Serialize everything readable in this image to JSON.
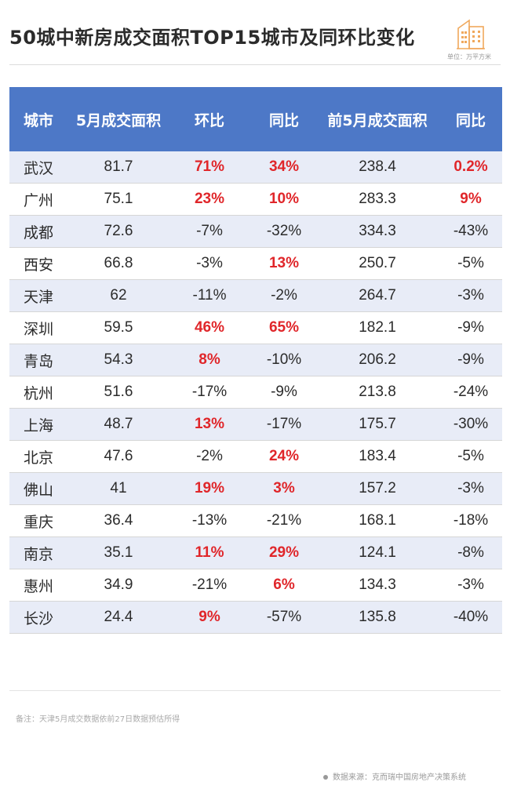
{
  "title": "50城中新房成交面积TOP15城市及同环比变化",
  "unit": "单位：万平方米",
  "table": {
    "headers": [
      "城市",
      "5月成交面积",
      "环比",
      "同比",
      "前5月成交面积",
      "同比"
    ],
    "rows": [
      [
        "武汉",
        "81.7",
        "71%",
        "34%",
        "238.4",
        "0.2%"
      ],
      [
        "广州",
        "75.1",
        "23%",
        "10%",
        "283.3",
        "9%"
      ],
      [
        "成都",
        "72.6",
        "-7%",
        "-32%",
        "334.3",
        "-43%"
      ],
      [
        "西安",
        "66.8",
        "-3%",
        "13%",
        "250.7",
        "-5%"
      ],
      [
        "天津",
        "62",
        "-11%",
        "-2%",
        "264.7",
        "-3%"
      ],
      [
        "深圳",
        "59.5",
        "46%",
        "65%",
        "182.1",
        "-9%"
      ],
      [
        "青岛",
        "54.3",
        "8%",
        "-10%",
        "206.2",
        "-9%"
      ],
      [
        "杭州",
        "51.6",
        "-17%",
        "-9%",
        "213.8",
        "-24%"
      ],
      [
        "上海",
        "48.7",
        "13%",
        "-17%",
        "175.7",
        "-30%"
      ],
      [
        "北京",
        "47.6",
        "-2%",
        "24%",
        "183.4",
        "-5%"
      ],
      [
        "佛山",
        "41",
        "19%",
        "3%",
        "157.2",
        "-3%"
      ],
      [
        "重庆",
        "36.4",
        "-13%",
        "-21%",
        "168.1",
        "-18%"
      ],
      [
        "南京",
        "35.1",
        "11%",
        "29%",
        "124.1",
        "-8%"
      ],
      [
        "惠州",
        "34.9",
        "-21%",
        "6%",
        "134.3",
        "-3%"
      ],
      [
        "长沙",
        "24.4",
        "9%",
        "-57%",
        "135.8",
        "-40%"
      ]
    ]
  },
  "chart_data": {
    "type": "table",
    "title": "50城中新房成交面积TOP15城市及同环比变化",
    "unit": "万平方米",
    "columns": [
      "城市",
      "5月成交面积",
      "环比",
      "同比",
      "前5月成交面积",
      "同比"
    ],
    "rows": [
      {
        "city": "武汉",
        "may_area": 81.7,
        "mom": 71,
        "yoy": 34,
        "ytd_area": 238.4,
        "ytd_yoy": 0.2
      },
      {
        "city": "广州",
        "may_area": 75.1,
        "mom": 23,
        "yoy": 10,
        "ytd_area": 283.3,
        "ytd_yoy": 9
      },
      {
        "city": "成都",
        "may_area": 72.6,
        "mom": -7,
        "yoy": -32,
        "ytd_area": 334.3,
        "ytd_yoy": -43
      },
      {
        "city": "西安",
        "may_area": 66.8,
        "mom": -3,
        "yoy": 13,
        "ytd_area": 250.7,
        "ytd_yoy": -5
      },
      {
        "city": "天津",
        "may_area": 62,
        "mom": -11,
        "yoy": -2,
        "ytd_area": 264.7,
        "ytd_yoy": -3
      },
      {
        "city": "深圳",
        "may_area": 59.5,
        "mom": 46,
        "yoy": 65,
        "ytd_area": 182.1,
        "ytd_yoy": -9
      },
      {
        "city": "青岛",
        "may_area": 54.3,
        "mom": 8,
        "yoy": -10,
        "ytd_area": 206.2,
        "ytd_yoy": -9
      },
      {
        "city": "杭州",
        "may_area": 51.6,
        "mom": -17,
        "yoy": -9,
        "ytd_area": 213.8,
        "ytd_yoy": -24
      },
      {
        "city": "上海",
        "may_area": 48.7,
        "mom": 13,
        "yoy": -17,
        "ytd_area": 175.7,
        "ytd_yoy": -30
      },
      {
        "city": "北京",
        "may_area": 47.6,
        "mom": -2,
        "yoy": 24,
        "ytd_area": 183.4,
        "ytd_yoy": -5
      },
      {
        "city": "佛山",
        "may_area": 41,
        "mom": 19,
        "yoy": 3,
        "ytd_area": 157.2,
        "ytd_yoy": -3
      },
      {
        "city": "重庆",
        "may_area": 36.4,
        "mom": -13,
        "yoy": -21,
        "ytd_area": 168.1,
        "ytd_yoy": -18
      },
      {
        "city": "南京",
        "may_area": 35.1,
        "mom": 11,
        "yoy": 29,
        "ytd_area": 124.1,
        "ytd_yoy": -8
      },
      {
        "city": "惠州",
        "may_area": 34.9,
        "mom": -21,
        "yoy": 6,
        "ytd_area": 134.3,
        "ytd_yoy": -3
      },
      {
        "city": "长沙",
        "may_area": 24.4,
        "mom": 9,
        "yoy": -57,
        "ytd_area": 135.8,
        "ytd_yoy": -40
      }
    ]
  },
  "footer": {
    "note": "备注：天津5月成交数据依前27日数据预估所得",
    "source": "数据来源：克而瑞中国房地产决策系统"
  },
  "colors": {
    "header_bg": "#4d78c7",
    "highlight_row_bg": "#e8ecf7",
    "positive_text": "#e0262a",
    "logo": "#f0a85c"
  },
  "icons": {
    "logo": "buildings-icon"
  }
}
